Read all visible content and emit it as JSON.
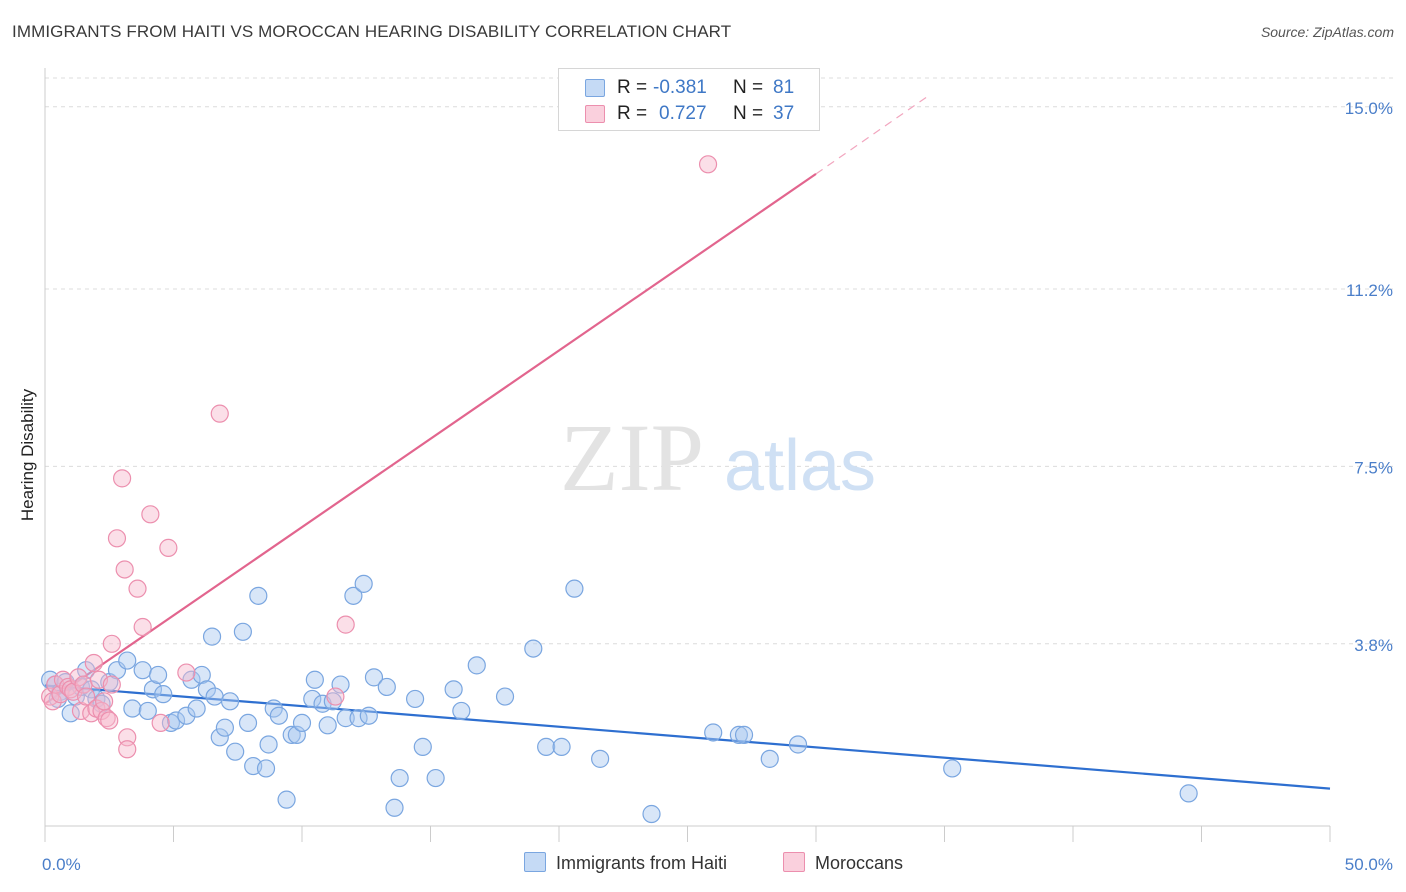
{
  "title": "IMMIGRANTS FROM HAITI VS MOROCCAN HEARING DISABILITY CORRELATION CHART",
  "source": "Source: ZipAtlas.com",
  "watermark": {
    "zip": "ZIP",
    "atlas": "atlas"
  },
  "legend": {
    "rows": [
      {
        "r_label": "R =",
        "r_value": "-0.381",
        "n_label": "N =",
        "n_value": "81",
        "color": "#a9c8f0"
      },
      {
        "r_label": "R =",
        "r_value": "0.727",
        "n_label": "N =",
        "n_value": "37",
        "color": "#f7b8cc"
      }
    ]
  },
  "bottom_legend": [
    {
      "label": "Immigrants from Haiti",
      "color": "#a9c8f0"
    },
    {
      "label": "Moroccans",
      "color": "#f7b8cc"
    }
  ],
  "chart_data": {
    "type": "scatter",
    "xlabel": "",
    "ylabel": "Hearing Disability",
    "xlim": [
      0,
      50
    ],
    "ylim": [
      0,
      15.6
    ],
    "x_tick_labels": [
      "0.0%",
      "50.0%"
    ],
    "y_ticks": [
      3.8,
      7.5,
      11.2,
      15.0
    ],
    "y_tick_labels": [
      "3.8%",
      "7.5%",
      "11.2%",
      "15.0%"
    ],
    "grid": true,
    "series": [
      {
        "name": "Immigrants from Haiti",
        "color": "#a9c8f0",
        "stroke": "#7aa6e0",
        "trend_color": "#2e6fd0",
        "trend": {
          "x0": 0,
          "y0": 2.93,
          "x1": 50,
          "y1": 0.78
        },
        "points": [
          [
            0.2,
            3.05
          ],
          [
            0.4,
            2.95
          ],
          [
            0.6,
            2.8
          ],
          [
            0.8,
            3.0
          ],
          [
            1.0,
            2.35
          ],
          [
            1.2,
            2.7
          ],
          [
            1.4,
            2.9
          ],
          [
            1.6,
            3.25
          ],
          [
            1.8,
            2.85
          ],
          [
            2.0,
            2.65
          ],
          [
            2.2,
            2.55
          ],
          [
            2.5,
            3.0
          ],
          [
            2.8,
            3.25
          ],
          [
            3.2,
            3.45
          ],
          [
            3.4,
            2.45
          ],
          [
            3.8,
            3.25
          ],
          [
            4.0,
            2.4
          ],
          [
            4.2,
            2.85
          ],
          [
            4.4,
            3.15
          ],
          [
            4.6,
            2.75
          ],
          [
            4.9,
            2.15
          ],
          [
            5.1,
            2.2
          ],
          [
            5.5,
            2.3
          ],
          [
            5.7,
            3.05
          ],
          [
            5.9,
            2.45
          ],
          [
            6.1,
            3.15
          ],
          [
            6.3,
            2.85
          ],
          [
            6.5,
            3.95
          ],
          [
            6.6,
            2.7
          ],
          [
            6.8,
            1.85
          ],
          [
            7.0,
            2.05
          ],
          [
            7.2,
            2.6
          ],
          [
            7.4,
            1.55
          ],
          [
            7.7,
            4.05
          ],
          [
            7.9,
            2.15
          ],
          [
            8.1,
            1.25
          ],
          [
            8.3,
            4.8
          ],
          [
            8.6,
            1.2
          ],
          [
            8.7,
            1.7
          ],
          [
            8.9,
            2.45
          ],
          [
            9.1,
            2.3
          ],
          [
            9.4,
            0.55
          ],
          [
            9.6,
            1.9
          ],
          [
            9.8,
            1.9
          ],
          [
            10.0,
            2.15
          ],
          [
            10.4,
            2.65
          ],
          [
            10.5,
            3.05
          ],
          [
            10.8,
            2.55
          ],
          [
            11.0,
            2.1
          ],
          [
            11.2,
            2.6
          ],
          [
            11.5,
            2.95
          ],
          [
            11.7,
            2.25
          ],
          [
            12.0,
            4.8
          ],
          [
            12.2,
            2.25
          ],
          [
            12.4,
            5.05
          ],
          [
            12.6,
            2.3
          ],
          [
            12.8,
            3.1
          ],
          [
            13.3,
            2.9
          ],
          [
            13.6,
            0.38
          ],
          [
            13.8,
            1.0
          ],
          [
            14.4,
            2.65
          ],
          [
            14.7,
            1.65
          ],
          [
            15.2,
            1.0
          ],
          [
            15.9,
            2.85
          ],
          [
            16.2,
            2.4
          ],
          [
            16.8,
            3.35
          ],
          [
            17.9,
            2.7
          ],
          [
            19.0,
            3.7
          ],
          [
            19.5,
            1.65
          ],
          [
            20.1,
            1.65
          ],
          [
            20.6,
            4.95
          ],
          [
            21.6,
            1.4
          ],
          [
            23.6,
            0.25
          ],
          [
            26.0,
            1.95
          ],
          [
            27.0,
            1.9
          ],
          [
            27.2,
            1.9
          ],
          [
            28.2,
            1.4
          ],
          [
            29.3,
            1.7
          ],
          [
            35.3,
            1.2
          ],
          [
            44.5,
            0.68
          ],
          [
            0.5,
            2.65
          ]
        ]
      },
      {
        "name": "Moroccans",
        "color": "#f7b8cc",
        "stroke": "#ec8fae",
        "trend_color": "#e2658e",
        "trend": {
          "x0": 0,
          "y0": 2.55,
          "x1": 30,
          "y1": 13.6
        },
        "trend_dashed": {
          "x0": 30,
          "y0": 13.6,
          "x1": 34.3,
          "y1": 15.2
        },
        "points": [
          [
            0.2,
            2.7
          ],
          [
            0.3,
            2.6
          ],
          [
            0.4,
            2.95
          ],
          [
            0.6,
            2.75
          ],
          [
            0.7,
            3.05
          ],
          [
            0.9,
            2.9
          ],
          [
            1.0,
            2.85
          ],
          [
            1.1,
            2.8
          ],
          [
            1.3,
            3.1
          ],
          [
            1.4,
            2.4
          ],
          [
            1.5,
            2.95
          ],
          [
            1.6,
            2.7
          ],
          [
            1.8,
            2.35
          ],
          [
            1.9,
            3.4
          ],
          [
            2.0,
            2.45
          ],
          [
            2.1,
            3.05
          ],
          [
            2.2,
            2.4
          ],
          [
            2.3,
            2.6
          ],
          [
            2.4,
            2.25
          ],
          [
            2.5,
            2.2
          ],
          [
            2.6,
            3.8
          ],
          [
            2.6,
            2.95
          ],
          [
            2.8,
            6.0
          ],
          [
            3.0,
            7.25
          ],
          [
            3.1,
            5.35
          ],
          [
            3.2,
            1.85
          ],
          [
            3.2,
            1.6
          ],
          [
            3.6,
            4.95
          ],
          [
            3.8,
            4.15
          ],
          [
            4.1,
            6.5
          ],
          [
            4.5,
            2.15
          ],
          [
            4.8,
            5.8
          ],
          [
            5.5,
            3.2
          ],
          [
            6.8,
            8.6
          ],
          [
            11.3,
            2.7
          ],
          [
            11.7,
            4.2
          ],
          [
            25.8,
            13.8
          ]
        ]
      }
    ]
  }
}
